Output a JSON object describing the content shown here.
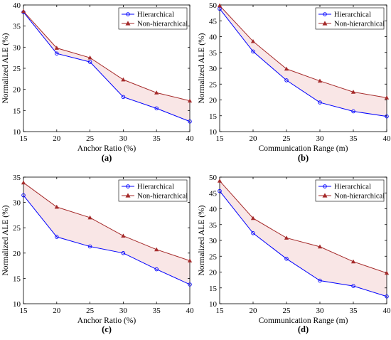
{
  "colors": {
    "hierarchical": "#0000ff",
    "non_hierarchical": "#a52a2a",
    "shade": "#f4d2d2"
  },
  "chart_data": [
    {
      "panel": "a",
      "type": "line",
      "caption": "(a)",
      "xlabel": "Anchor Ratio (%)",
      "ylabel": "Normalized ALE (%)",
      "x": [
        15,
        20,
        25,
        30,
        35,
        40
      ],
      "xlim": [
        15,
        40
      ],
      "ylim": [
        10,
        40
      ],
      "xticks": [
        15,
        20,
        25,
        30,
        35,
        40
      ],
      "yticks": [
        10,
        15,
        20,
        25,
        30,
        35,
        40
      ],
      "legend": "top-right",
      "series": [
        {
          "name": "Hierarchical",
          "marker": "circle",
          "values": [
            38.3,
            28.5,
            26.5,
            18.2,
            15.5,
            12.4
          ]
        },
        {
          "name": "Non-hierarchical",
          "marker": "triangle",
          "values": [
            38.5,
            29.8,
            27.5,
            22.3,
            19.2,
            17.3
          ]
        }
      ]
    },
    {
      "panel": "b",
      "type": "line",
      "caption": "(b)",
      "xlabel": "Communication Range (m)",
      "ylabel": "Normalized ALE (%)",
      "x": [
        15,
        20,
        25,
        30,
        35,
        40
      ],
      "xlim": [
        15,
        40
      ],
      "ylim": [
        10,
        50
      ],
      "xticks": [
        15,
        20,
        25,
        30,
        35,
        40
      ],
      "yticks": [
        10,
        15,
        20,
        25,
        30,
        35,
        40,
        45,
        50
      ],
      "legend": "top-right",
      "series": [
        {
          "name": "Hierarchical",
          "marker": "circle",
          "values": [
            48.8,
            35.3,
            26.2,
            19.2,
            16.4,
            14.8
          ]
        },
        {
          "name": "Non-hierarchical",
          "marker": "triangle",
          "values": [
            49.8,
            38.5,
            29.8,
            26.0,
            22.5,
            20.7
          ]
        }
      ]
    },
    {
      "panel": "c",
      "type": "line",
      "caption": "(c)",
      "xlabel": "Anchor Ratio (%)",
      "ylabel": "Normalized ALE (%)",
      "x": [
        15,
        20,
        25,
        30,
        35,
        40
      ],
      "xlim": [
        15,
        40
      ],
      "ylim": [
        10,
        35
      ],
      "xticks": [
        15,
        20,
        25,
        30,
        35,
        40
      ],
      "yticks": [
        10,
        15,
        20,
        25,
        30,
        35
      ],
      "legend": "top-right",
      "series": [
        {
          "name": "Hierarchical",
          "marker": "circle",
          "values": [
            31.4,
            23.2,
            21.3,
            20.0,
            16.8,
            13.8
          ]
        },
        {
          "name": "Non-hierarchical",
          "marker": "triangle",
          "values": [
            33.9,
            29.1,
            27.0,
            23.4,
            20.7,
            18.5
          ]
        }
      ]
    },
    {
      "panel": "d",
      "type": "line",
      "caption": "(d)",
      "xlabel": "Communication Range (m)",
      "ylabel": "Normalized ALE (%)",
      "x": [
        15,
        20,
        25,
        30,
        35,
        40
      ],
      "xlim": [
        15,
        40
      ],
      "ylim": [
        10,
        50
      ],
      "xticks": [
        15,
        20,
        25,
        30,
        35,
        40
      ],
      "yticks": [
        10,
        15,
        20,
        25,
        30,
        35,
        40,
        45,
        50
      ],
      "legend": "top-right",
      "series": [
        {
          "name": "Hierarchical",
          "marker": "circle",
          "values": [
            45.6,
            32.3,
            24.2,
            17.3,
            15.6,
            12.3
          ]
        },
        {
          "name": "Non-hierarchical",
          "marker": "triangle",
          "values": [
            48.8,
            37.0,
            30.8,
            28.0,
            23.3,
            19.7
          ]
        }
      ]
    }
  ]
}
